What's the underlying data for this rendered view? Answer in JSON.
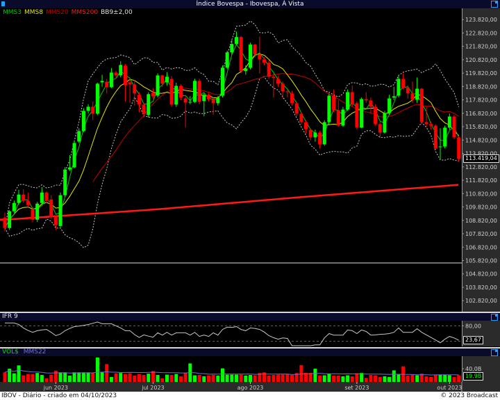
{
  "window": {
    "title": "Índice Bovespa - Ibovespa, À Vista",
    "popout_icon": "external-window-icon",
    "app_icon": "app-icon"
  },
  "legend": {
    "mms3": "MMS3",
    "mms8": "MMS8",
    "mms20": "MMS20",
    "mms200": "MMS200",
    "bb": "BB9±2,00"
  },
  "colors": {
    "up": "#00ff00",
    "down": "#ff0000",
    "mms3": "#00c800",
    "mms8": "#e6e600",
    "mms20": "#c80000",
    "mms200": "#ff1a1a",
    "bb": "#c8c8c8",
    "ifr": "#c8c8c8",
    "vol_ma": "#7070d0",
    "titlebar": "#0a0a2a"
  },
  "chart_data": [
    {
      "type": "candlestick",
      "ylim": [
        102000,
        124660
      ],
      "y_ticks": [
        {
          "value": 123820,
          "label": "123.820,00"
        },
        {
          "value": 122820,
          "label": "122.820,00"
        },
        {
          "value": 121820,
          "label": "121.820,00"
        },
        {
          "value": 120820,
          "label": "120.820,00"
        },
        {
          "value": 119820,
          "label": "119.820,00"
        },
        {
          "value": 118820,
          "label": "118.820,00"
        },
        {
          "value": 117820,
          "label": "117.820,00"
        },
        {
          "value": 116820,
          "label": "116.820,00"
        },
        {
          "value": 115820,
          "label": "115.820,00"
        },
        {
          "value": 114820,
          "label": "114.820,00"
        },
        {
          "value": 113820,
          "label": "113.820,00"
        },
        {
          "value": 112820,
          "label": "112.820,00"
        },
        {
          "value": 111820,
          "label": "111.820,00"
        },
        {
          "value": 110820,
          "label": "110.820,00"
        },
        {
          "value": 109820,
          "label": "109.820,00"
        },
        {
          "value": 108820,
          "label": "108.820,00"
        },
        {
          "value": 107820,
          "label": "107.820,00"
        },
        {
          "value": 106820,
          "label": "106.820,00"
        },
        {
          "value": 105820,
          "label": "105.820,00"
        },
        {
          "value": 104820,
          "label": "104.820,00"
        },
        {
          "value": 103820,
          "label": "103.820,00"
        },
        {
          "value": 102820,
          "label": "102.820,00"
        }
      ],
      "last_value": 113419.04,
      "last_value_label": "113.419,04",
      "reference_line": 105640,
      "x_ticks": [
        {
          "label": "jun 2023",
          "candle": 12
        },
        {
          "label": "jul 2023",
          "candle": 33
        },
        {
          "label": "ago 2023",
          "candle": 54
        },
        {
          "label": "set 2023",
          "candle": 77
        },
        {
          "label": "out 2023",
          "candle": 97
        }
      ],
      "open": [
        109030,
        108250,
        109500,
        110120,
        110750,
        110280,
        109650,
        108870,
        110120,
        110900,
        110380,
        109080,
        108400,
        110700,
        112620,
        112780,
        114710,
        115490,
        117000,
        117310,
        116790,
        119130,
        119180,
        118770,
        119860,
        119650,
        120380,
        119130,
        118980,
        118200,
        117470,
        116690,
        118350,
        118140,
        119650,
        119130,
        119390,
        117470,
        118870,
        117930,
        117620,
        117670,
        119240,
        117730,
        118200,
        117880,
        117570,
        118140,
        120230,
        121370,
        122000,
        122520,
        119970,
        120230,
        121950,
        121220,
        120850,
        120590,
        119550,
        119390,
        119030,
        118460,
        118300,
        117570,
        116790,
        116160,
        115590,
        115020,
        115380,
        114500,
        116160,
        118140,
        117050,
        115900,
        117100,
        118400,
        117570,
        115750,
        117880,
        117780,
        117310,
        116010,
        115380,
        116840,
        117990,
        118140,
        119390,
        118720,
        118300,
        117830,
        118660,
        116160,
        116010,
        115900,
        114290,
        114340,
        115750,
        116580,
        115020
      ],
      "high": [
        109400,
        109600,
        110300,
        111100,
        111140,
        110900,
        109800,
        110200,
        111300,
        111000,
        110700,
        109200,
        110900,
        112800,
        113700,
        114800,
        115700,
        117200,
        117500,
        117700,
        119100,
        119700,
        119400,
        120200,
        120000,
        120700,
        120500,
        119400,
        119300,
        118400,
        117600,
        118400,
        118700,
        119800,
        119700,
        119900,
        119600,
        119100,
        119000,
        118100,
        118100,
        119400,
        119400,
        118300,
        118300,
        118000,
        118100,
        120400,
        121500,
        122300,
        122930,
        122600,
        120400,
        122100,
        122000,
        122550,
        121000,
        120800,
        119800,
        119600,
        119200,
        118600,
        118500,
        117700,
        116900,
        116300,
        115700,
        115600,
        115500,
        116300,
        118300,
        118600,
        117800,
        117300,
        118600,
        118900,
        117700,
        118000,
        118400,
        118000,
        117500,
        116200,
        117000,
        118200,
        118800,
        119600,
        119800,
        118900,
        119200,
        119500,
        118700,
        117300,
        116200,
        116000,
        115700,
        115900,
        116800,
        116700,
        115100
      ],
      "low": [
        108000,
        108100,
        109400,
        110000,
        110150,
        109800,
        108700,
        108700,
        110000,
        110100,
        108900,
        108100,
        108300,
        110600,
        112500,
        112700,
        114600,
        115400,
        116800,
        116300,
        116700,
        118800,
        118300,
        118700,
        119400,
        119500,
        117700,
        117600,
        117400,
        116900,
        116500,
        116500,
        117900,
        118000,
        118800,
        118900,
        117300,
        117300,
        117800,
        115750,
        117500,
        117600,
        117500,
        116600,
        117700,
        116700,
        117400,
        118000,
        120100,
        121200,
        121900,
        119800,
        119700,
        120100,
        121000,
        119800,
        120400,
        119400,
        118000,
        118800,
        117900,
        118000,
        117400,
        116600,
        116000,
        115300,
        114800,
        114700,
        114200,
        114400,
        116000,
        116900,
        115800,
        115800,
        117000,
        117300,
        115600,
        115700,
        117600,
        116800,
        115900,
        115000,
        115300,
        116700,
        117800,
        118000,
        118600,
        117900,
        117600,
        117600,
        116000,
        115800,
        115600,
        114100,
        113400,
        114200,
        115600,
        114900,
        113200
      ],
      "close": [
        108250,
        109500,
        110120,
        110750,
        110280,
        109970,
        108870,
        110070,
        110900,
        110280,
        109080,
        108460,
        110700,
        112620,
        112780,
        114600,
        115490,
        117000,
        117310,
        116790,
        119030,
        119240,
        118770,
        119860,
        119650,
        120430,
        118920,
        118980,
        118300,
        117470,
        116790,
        118250,
        118090,
        119650,
        119030,
        119550,
        117470,
        118870,
        117990,
        117620,
        117670,
        119240,
        117670,
        118200,
        117880,
        117570,
        117990,
        120230,
        121370,
        122000,
        122520,
        119970,
        120170,
        121950,
        121220,
        120850,
        120590,
        119550,
        119450,
        119030,
        118460,
        118400,
        117570,
        116790,
        116160,
        115640,
        115020,
        115380,
        114500,
        116160,
        118140,
        117050,
        115900,
        117100,
        118400,
        117470,
        115750,
        117880,
        117780,
        117310,
        116010,
        115380,
        116840,
        117930,
        118090,
        119390,
        118720,
        118300,
        117830,
        118660,
        116160,
        116010,
        115900,
        114190,
        114340,
        115750,
        116580,
        115020,
        113419.04
      ],
      "mms200": [
        [
          1,
          108870
        ],
        [
          34,
          109650
        ],
        [
          66,
          110590
        ],
        [
          99,
          111480
        ]
      ],
      "indicators": {
        "mms_periods": [
          3,
          8,
          20
        ],
        "bb_period": 9,
        "bb_sd": 2
      }
    },
    {
      "type": "line",
      "title": "IFR 9",
      "ylim": [
        0,
        100
      ],
      "y_ticks": [
        {
          "value": 80,
          "label": "80,00"
        }
      ],
      "guide_lines": [
        80,
        20
      ],
      "last_value_label": "23,67",
      "values": [
        91,
        91,
        91,
        85,
        72,
        62,
        55,
        61,
        64,
        66,
        55,
        42,
        48,
        61,
        70,
        77,
        79,
        82,
        85,
        90,
        95,
        88,
        88,
        88,
        80,
        72,
        61,
        61,
        46,
        35,
        45,
        40,
        36,
        53,
        44,
        55,
        44,
        53,
        53,
        53,
        44,
        55,
        39,
        44,
        39,
        53,
        44,
        66,
        75,
        74,
        77,
        66,
        61,
        72,
        70,
        66,
        56,
        42,
        34,
        28,
        33,
        31,
        2,
        0,
        0,
        0,
        0,
        6,
        6,
        33,
        50,
        44,
        44,
        44,
        64,
        61,
        50,
        64,
        58,
        44,
        45,
        47,
        48,
        50,
        55,
        72,
        55,
        55,
        55,
        69,
        55,
        45,
        35,
        25,
        14,
        28,
        39,
        33,
        23.67
      ]
    },
    {
      "type": "bar",
      "title": "VOL$",
      "ma_label": "MMS22",
      "ma_period": 22,
      "unit": "B",
      "ylim": [
        0,
        78
      ],
      "y_ticks": [
        {
          "value": 40,
          "label": "40,0B"
        }
      ],
      "last_value_label": "19,9B",
      "values": [
        29,
        40,
        26,
        50,
        20,
        24,
        24,
        27,
        21,
        11,
        22,
        34,
        29,
        29,
        19,
        29,
        29,
        29,
        29,
        27,
        74,
        29,
        54,
        15,
        26,
        27,
        24,
        26,
        19,
        24,
        21,
        25,
        33,
        21,
        11,
        22,
        21,
        24,
        17,
        27,
        56,
        20,
        21,
        17,
        19,
        21,
        19,
        41,
        22,
        22,
        22,
        22,
        19,
        21,
        20,
        27,
        29,
        19,
        21,
        22,
        22,
        24,
        21,
        27,
        51,
        27,
        27,
        40,
        19,
        20,
        24,
        19,
        19,
        17,
        20,
        17,
        26,
        27,
        12,
        21,
        20,
        15,
        17,
        15,
        35,
        22,
        47,
        19,
        21,
        20,
        25,
        17,
        15,
        22,
        22,
        21,
        20,
        15,
        19.9
      ]
    }
  ],
  "footer": {
    "left": "IBOV - Diário - criado em 04/10/2023",
    "right": "© 2023 Broadcast"
  }
}
